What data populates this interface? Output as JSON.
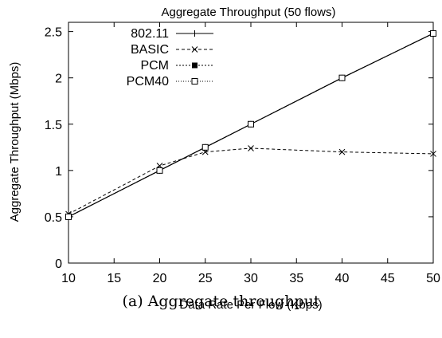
{
  "chart_data": {
    "type": "line",
    "title": "Aggregate Throughput (50 flows)",
    "xlabel": "Data Rate Per Flow (Kbps)",
    "ylabel": "Aggregate Throughput (Mbps)",
    "xlim": [
      10,
      50
    ],
    "ylim": [
      0,
      2.6
    ],
    "xticks": [
      "10",
      "15",
      "20",
      "25",
      "30",
      "35",
      "40",
      "45",
      "50"
    ],
    "yticks": [
      "0",
      "0.5",
      "1",
      "1.5",
      "2",
      "2.5"
    ],
    "grid": false,
    "legend_position": "top-left",
    "x": [
      10,
      20,
      25,
      30,
      40,
      50
    ],
    "series": [
      {
        "name": "802.11",
        "values": [
          0.5,
          1.0,
          1.25,
          1.5,
          2.0,
          2.48
        ],
        "marker": "plus",
        "dash": "solid"
      },
      {
        "name": "BASIC",
        "values": [
          0.53,
          1.05,
          1.2,
          1.24,
          1.2,
          1.18
        ],
        "marker": "cross",
        "dash": "dashed"
      },
      {
        "name": "PCM",
        "values": [
          0.5,
          1.0,
          1.25,
          1.5,
          2.0,
          2.48
        ],
        "marker": "filled-square",
        "dash": "dotted"
      },
      {
        "name": "PCM40",
        "values": [
          0.5,
          1.0,
          1.25,
          1.5,
          2.0,
          2.48
        ],
        "marker": "open-square",
        "dash": "dotted-fine"
      }
    ]
  },
  "caption": "(a) Aggregate throughput"
}
